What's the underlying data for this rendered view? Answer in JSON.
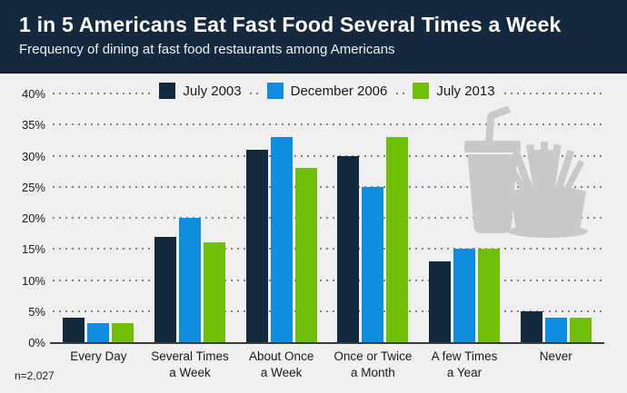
{
  "header": {
    "title": "1 in 5 Americans Eat Fast Food Several Times a Week",
    "subtitle": "Frequency of dining at fast food restaurants among Americans"
  },
  "chart_data": {
    "type": "bar",
    "title": "1 in 5 Americans Eat Fast Food Several Times a Week",
    "subtitle": "Frequency of dining at fast food restaurants among Americans",
    "categories": [
      "Every Day",
      "Several Times\na Week",
      "About Once\na Week",
      "Once or Twice\na Month",
      "A few Times\na Year",
      "Never"
    ],
    "series": [
      {
        "name": "July 2003",
        "color": "#12293E",
        "values": [
          4,
          17,
          31,
          30,
          13,
          5
        ]
      },
      {
        "name": "December 2006",
        "color": "#0F8DDE",
        "values": [
          3,
          20,
          33,
          25,
          15,
          4
        ]
      },
      {
        "name": "July 2013",
        "color": "#72BF0A",
        "values": [
          3,
          16,
          28,
          33,
          15,
          4
        ]
      }
    ],
    "ylim": [
      0,
      40
    ],
    "ytick_step": 5,
    "ytick_suffix": "%",
    "grid": "horizontal-dotted",
    "legend_position": "top-center",
    "note": "n=2,027"
  },
  "colors": {
    "header_bg": "#15293E",
    "chart_bg": "#F0F0F0",
    "axis": "#3B3B3B",
    "grid": "#828282",
    "silhouette": "#C9C9C9"
  },
  "icons": {
    "decoration": "cup-and-fries-silhouette"
  }
}
